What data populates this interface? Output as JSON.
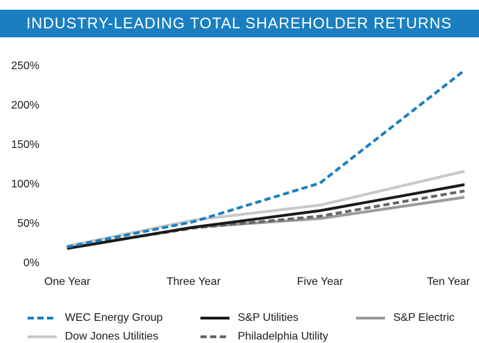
{
  "chart_data": {
    "type": "line",
    "title": "INDUSTRY-LEADING TOTAL SHAREHOLDER RETURNS",
    "categories": [
      "One Year",
      "Three Year",
      "Five Year",
      "Ten Year"
    ],
    "series": [
      {
        "name": "WEC Energy Group",
        "color": "#1a7fc1",
        "style": "dashed",
        "values": [
          21,
          53,
          102,
          245
        ]
      },
      {
        "name": "S&P Utilities",
        "color": "#1a1a1a",
        "style": "solid",
        "values": [
          19,
          46,
          67,
          100
        ]
      },
      {
        "name": "S&P Electric",
        "color": "#9a9a9a",
        "style": "solid",
        "values": [
          19,
          46,
          57,
          84
        ]
      },
      {
        "name": "Dow Jones Utilities",
        "color": "#c8c8c8",
        "style": "solid",
        "values": [
          22,
          55,
          74,
          117
        ]
      },
      {
        "name": "Philadelphia Utility",
        "color": "#666666",
        "style": "dashed",
        "values": [
          20,
          45,
          60,
          92
        ]
      }
    ],
    "ylim": [
      0,
      250
    ],
    "yticks": [
      {
        "value": 0,
        "label": "0%"
      },
      {
        "value": 50,
        "label": "50%"
      },
      {
        "value": 100,
        "label": "100%"
      },
      {
        "value": 150,
        "label": "150%"
      },
      {
        "value": 200,
        "label": "200%"
      },
      {
        "value": 250,
        "label": "250%"
      }
    ],
    "grid": false
  }
}
